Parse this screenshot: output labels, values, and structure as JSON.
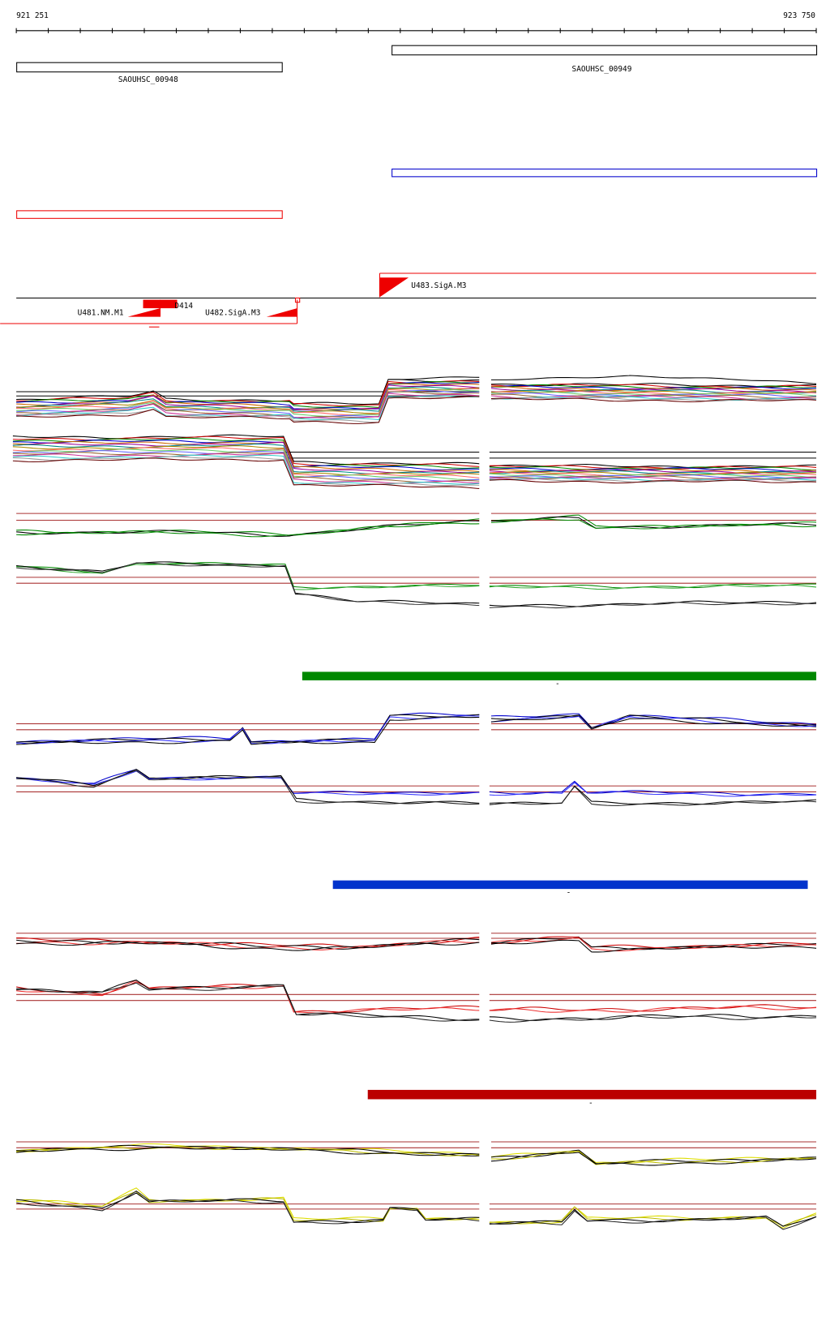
{
  "ruler": {
    "start": "921 251",
    "end": "923 750"
  },
  "genes": [
    {
      "label": "SAOUHSC_00948"
    },
    {
      "label": "SAOUHSC_00949"
    }
  ],
  "features": [
    {
      "label": "U483.SigA.M3"
    },
    {
      "label": "U481.NM.M1"
    },
    {
      "label": "D414"
    },
    {
      "label": "U482.SigA.M3"
    }
  ],
  "bar_marks": [
    "-",
    "-",
    "-"
  ]
}
